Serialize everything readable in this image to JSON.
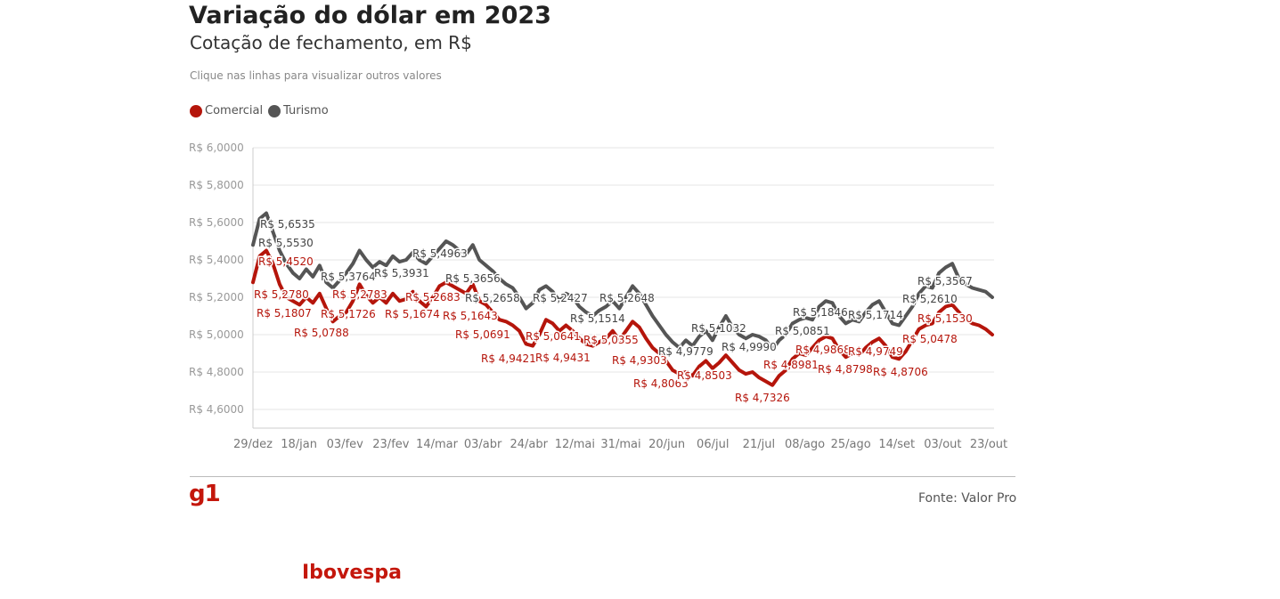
{
  "header": {
    "title": "Variação do dólar em 2023",
    "subtitle": "Cotação de fechamento, em R$",
    "hint": "Clique nas linhas para visualizar outros valores"
  },
  "legend": [
    {
      "label": "Comercial",
      "color": "#b5150b"
    },
    {
      "label": "Turismo",
      "color": "#555555"
    }
  ],
  "footer": {
    "logo": "g1",
    "source": "Fonte: Valor Pro"
  },
  "next_section": {
    "title": "Ibovespa"
  },
  "chart_data": {
    "type": "line",
    "title": "Variação do dólar em 2023",
    "subtitle": "Cotação de fechamento, em R$",
    "ylim": [
      4.5,
      6.0
    ],
    "y_ticks": [
      4.6,
      4.8,
      5.0,
      5.2,
      5.4,
      5.6,
      5.8,
      6.0
    ],
    "y_tick_labels": [
      "R$ 4,6000",
      "R$ 4,8000",
      "R$ 5,0000",
      "R$ 5,2000",
      "R$ 5,4000",
      "R$ 5,6000",
      "R$ 5,8000",
      "R$ 6,0000"
    ],
    "x_tick_labels": [
      "29/dez",
      "18/jan",
      "03/fev",
      "23/fev",
      "14/mar",
      "03/abr",
      "24/abr",
      "12/mai",
      "31/mai",
      "20/jun",
      "06/jul",
      "21/jul",
      "08/ago",
      "25/ago",
      "14/set",
      "03/out",
      "23/out"
    ],
    "grid": true,
    "series": [
      {
        "name": "Turismo",
        "color": "#555555",
        "values": [
          5.48,
          5.62,
          5.65,
          5.55,
          5.45,
          5.38,
          5.33,
          5.3,
          5.35,
          5.31,
          5.37,
          5.28,
          5.25,
          5.29,
          5.33,
          5.38,
          5.45,
          5.4,
          5.36,
          5.39,
          5.37,
          5.42,
          5.39,
          5.4,
          5.44,
          5.4,
          5.38,
          5.42,
          5.46,
          5.5,
          5.48,
          5.45,
          5.43,
          5.48,
          5.4,
          5.37,
          5.34,
          5.3,
          5.27,
          5.25,
          5.2,
          5.14,
          5.17,
          5.24,
          5.26,
          5.23,
          5.18,
          5.22,
          5.2,
          5.15,
          5.12,
          5.1,
          5.13,
          5.15,
          5.18,
          5.14,
          5.2,
          5.26,
          5.22,
          5.16,
          5.1,
          5.05,
          5.0,
          4.96,
          4.93,
          4.97,
          4.94,
          4.99,
          5.02,
          4.97,
          5.04,
          5.1,
          5.04,
          5.0,
          4.98,
          5.0,
          4.99,
          4.97,
          4.92,
          4.97,
          5.0,
          5.06,
          5.08,
          5.09,
          5.08,
          5.15,
          5.18,
          5.17,
          5.1,
          5.06,
          5.08,
          5.07,
          5.12,
          5.16,
          5.18,
          5.12,
          5.06,
          5.05,
          5.1,
          5.15,
          5.22,
          5.26,
          5.25,
          5.33,
          5.36,
          5.38,
          5.3,
          5.27,
          5.25,
          5.24,
          5.23,
          5.2
        ]
      },
      {
        "name": "Comercial",
        "color": "#b5150b",
        "values": [
          5.28,
          5.42,
          5.45,
          5.38,
          5.27,
          5.2,
          5.18,
          5.16,
          5.2,
          5.17,
          5.22,
          5.14,
          5.07,
          5.1,
          5.12,
          5.18,
          5.27,
          5.21,
          5.17,
          5.2,
          5.17,
          5.22,
          5.18,
          5.19,
          5.23,
          5.18,
          5.15,
          5.2,
          5.26,
          5.28,
          5.26,
          5.24,
          5.22,
          5.27,
          5.18,
          5.16,
          5.12,
          5.08,
          5.07,
          5.05,
          5.02,
          4.95,
          4.94,
          5.0,
          5.08,
          5.06,
          5.02,
          5.05,
          5.02,
          4.98,
          4.95,
          4.94,
          4.96,
          4.98,
          5.02,
          4.97,
          5.02,
          5.07,
          5.04,
          4.98,
          4.93,
          4.9,
          4.86,
          4.81,
          4.79,
          4.8,
          4.78,
          4.83,
          4.86,
          4.82,
          4.85,
          4.89,
          4.85,
          4.81,
          4.79,
          4.8,
          4.77,
          4.75,
          4.73,
          4.78,
          4.81,
          4.87,
          4.9,
          4.89,
          4.93,
          4.97,
          4.99,
          4.98,
          4.92,
          4.88,
          4.9,
          4.89,
          4.93,
          4.96,
          4.98,
          4.94,
          4.88,
          4.87,
          4.91,
          4.97,
          5.03,
          5.05,
          5.06,
          5.12,
          5.15,
          5.16,
          5.12,
          5.08,
          5.06,
          5.05,
          5.03,
          5.0
        ]
      }
    ],
    "annotations": [
      {
        "text": "R$ 5,6535",
        "series": "Turismo"
      },
      {
        "text": "R$ 5,5530",
        "series": "Turismo"
      },
      {
        "text": "R$ 5,4520",
        "series": "Comercial"
      },
      {
        "text": "R$ 5,2780",
        "series": "Comercial"
      },
      {
        "text": "R$ 5,1807",
        "series": "Comercial"
      },
      {
        "text": "R$ 5,0788",
        "series": "Comercial"
      },
      {
        "text": "R$ 5,3764",
        "series": "Turismo"
      },
      {
        "text": "R$ 5,1726",
        "series": "Comercial"
      },
      {
        "text": "R$ 5,2783",
        "series": "Comercial"
      },
      {
        "text": "R$ 5,3931",
        "series": "Turismo"
      },
      {
        "text": "R$ 5,1674",
        "series": "Comercial"
      },
      {
        "text": "R$ 5,4963",
        "series": "Turismo"
      },
      {
        "text": "R$ 5,2683",
        "series": "Comercial"
      },
      {
        "text": "R$ 5,3656",
        "series": "Turismo"
      },
      {
        "text": "R$ 5,2658",
        "series": "Turismo"
      },
      {
        "text": "R$ 5,1643",
        "series": "Comercial"
      },
      {
        "text": "R$ 5,0691",
        "series": "Comercial"
      },
      {
        "text": "R$ 4,9421",
        "series": "Comercial"
      },
      {
        "text": "R$ 5,2427",
        "series": "Turismo"
      },
      {
        "text": "R$ 5,0641",
        "series": "Comercial"
      },
      {
        "text": "R$ 4,9431",
        "series": "Comercial"
      },
      {
        "text": "R$ 5,1514",
        "series": "Turismo"
      },
      {
        "text": "R$ 5,0355",
        "series": "Comercial"
      },
      {
        "text": "R$ 5,2648",
        "series": "Turismo"
      },
      {
        "text": "R$ 4,9303",
        "series": "Comercial"
      },
      {
        "text": "R$ 4,8063",
        "series": "Comercial"
      },
      {
        "text": "R$ 4,9779",
        "series": "Turismo"
      },
      {
        "text": "R$ 5,1032",
        "series": "Turismo"
      },
      {
        "text": "R$ 4,8503",
        "series": "Comercial"
      },
      {
        "text": "R$ 4,9990",
        "series": "Turismo"
      },
      {
        "text": "R$ 4,7326",
        "series": "Comercial"
      },
      {
        "text": "R$ 5,0851",
        "series": "Turismo"
      },
      {
        "text": "R$ 4,8981",
        "series": "Comercial"
      },
      {
        "text": "R$ 5,1846",
        "series": "Turismo"
      },
      {
        "text": "R$ 4,9868",
        "series": "Comercial"
      },
      {
        "text": "R$ 4,8798",
        "series": "Comercial"
      },
      {
        "text": "R$ 5,1714",
        "series": "Turismo"
      },
      {
        "text": "R$ 4,9749",
        "series": "Comercial"
      },
      {
        "text": "R$ 4,8706",
        "series": "Comercial"
      },
      {
        "text": "R$ 5,2610",
        "series": "Turismo"
      },
      {
        "text": "R$ 5,3567",
        "series": "Turismo"
      },
      {
        "text": "R$ 5,0478",
        "series": "Comercial"
      },
      {
        "text": "R$ 5,1530",
        "series": "Comercial"
      }
    ]
  }
}
